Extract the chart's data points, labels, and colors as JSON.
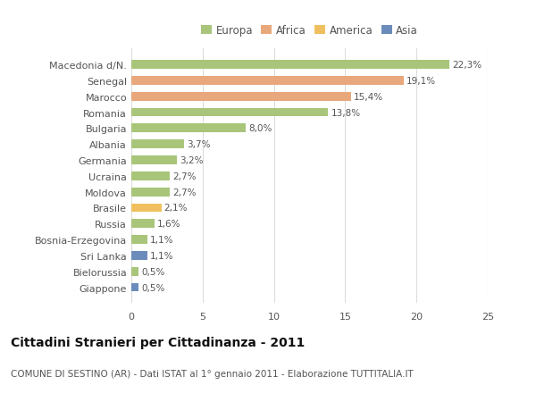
{
  "categories": [
    "Giappone",
    "Bielorussia",
    "Sri Lanka",
    "Bosnia-Erzegovina",
    "Russia",
    "Brasile",
    "Moldova",
    "Ucraina",
    "Germania",
    "Albania",
    "Bulgaria",
    "Romania",
    "Marocco",
    "Senegal",
    "Macedonia d/N."
  ],
  "values": [
    0.5,
    0.5,
    1.1,
    1.1,
    1.6,
    2.1,
    2.7,
    2.7,
    3.2,
    3.7,
    8.0,
    13.8,
    15.4,
    19.1,
    22.3
  ],
  "labels": [
    "0,5%",
    "0,5%",
    "1,1%",
    "1,1%",
    "1,6%",
    "2,1%",
    "2,7%",
    "2,7%",
    "3,2%",
    "3,7%",
    "8,0%",
    "13,8%",
    "15,4%",
    "19,1%",
    "22,3%"
  ],
  "colors": [
    "#6b8cba",
    "#a8c57a",
    "#6b8cba",
    "#a8c57a",
    "#a8c57a",
    "#f0c060",
    "#a8c57a",
    "#a8c57a",
    "#a8c57a",
    "#a8c57a",
    "#a8c57a",
    "#a8c57a",
    "#e8a87c",
    "#e8a87c",
    "#a8c57a"
  ],
  "continent_colors": {
    "Europa": "#a8c57a",
    "Africa": "#e8a87c",
    "America": "#f0c060",
    "Asia": "#6b8cba"
  },
  "xlim": [
    0,
    25
  ],
  "xticks": [
    0,
    5,
    10,
    15,
    20,
    25
  ],
  "title": "Cittadini Stranieri per Cittadinanza - 2011",
  "subtitle": "COMUNE DI SESTINO (AR) - Dati ISTAT al 1° gennaio 2011 - Elaborazione TUTTITALIA.IT",
  "background_color": "#ffffff",
  "bar_height": 0.55,
  "grid_color": "#dddddd",
  "text_color": "#555555",
  "ytick_fontsize": 8,
  "xtick_fontsize": 8,
  "label_fontsize": 7.5,
  "title_fontsize": 10,
  "subtitle_fontsize": 7.5,
  "legend_fontsize": 8.5
}
